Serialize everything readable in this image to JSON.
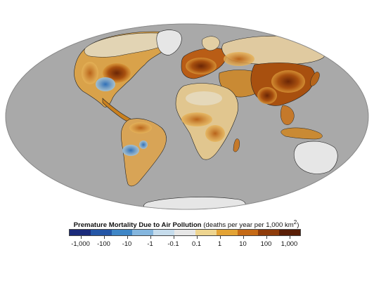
{
  "legend": {
    "title_bold": "Premature Mortality Due to Air Pollution",
    "title_units": "(deaths per year per 1,000 km",
    "title_sup": "2",
    "title_close": ")",
    "ticks": [
      "-1,000",
      "-100",
      "-10",
      "-1",
      "-0.1",
      "0.1",
      "1",
      "10",
      "100",
      "1,000"
    ],
    "colors": [
      "#1a2a7a",
      "#2456a6",
      "#3f86c6",
      "#84b6de",
      "#c6dcec",
      "#e6e6e6",
      "#eed590",
      "#e3a335",
      "#c56a16",
      "#8e3b0a",
      "#5a1e06"
    ]
  },
  "map": {
    "ocean_color": "#a9a9a9",
    "land_base_color": "#dedede"
  }
}
